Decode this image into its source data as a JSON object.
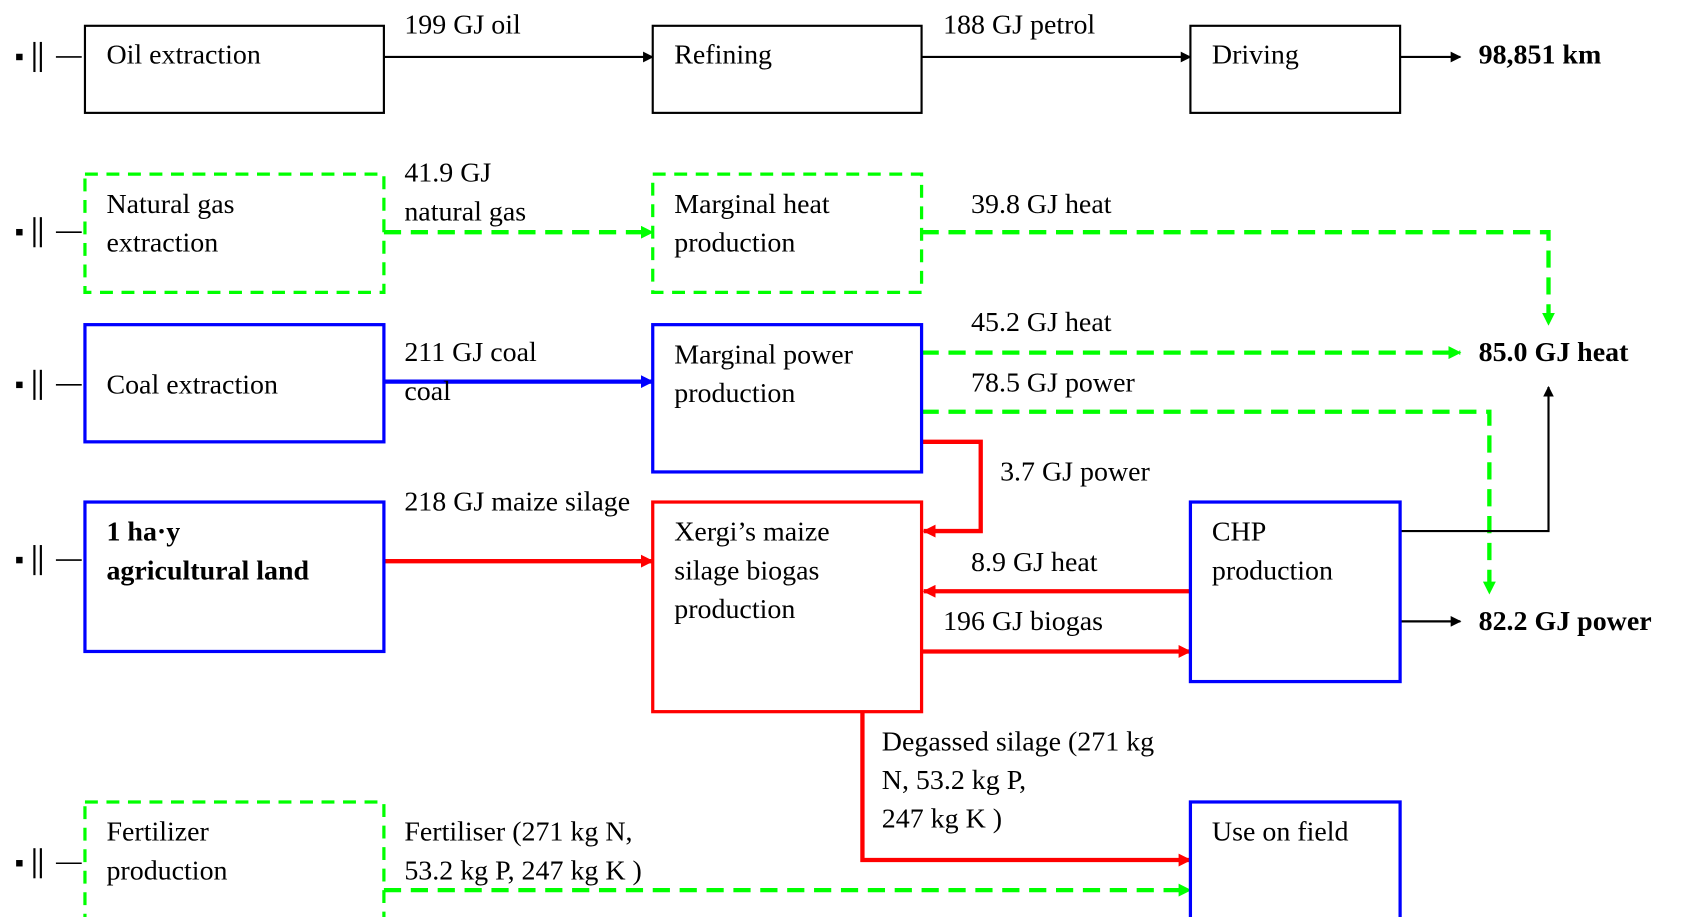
{
  "nodes": [
    {
      "lines": [
        "Oil extraction"
      ]
    },
    {
      "lines": [
        "Refining"
      ]
    },
    {
      "lines": [
        "Driving"
      ]
    },
    {
      "lines": [
        "Natural gas",
        "extraction"
      ]
    },
    {
      "lines": [
        "Marginal heat",
        "production"
      ]
    },
    {
      "lines": [
        "Coal extraction"
      ]
    },
    {
      "lines": [
        "Marginal power",
        "production"
      ]
    },
    {
      "lines": [
        "1 ha·y",
        "agricultural land"
      ]
    },
    {
      "lines": [
        "Xergi’s maize",
        "silage biogas",
        "production"
      ]
    },
    {
      "lines": [
        "CHP",
        "production"
      ]
    },
    {
      "lines": [
        "Fertilizer",
        "production"
      ]
    },
    {
      "lines": [
        "Use on field"
      ]
    }
  ],
  "flows": [
    {
      "lines": [
        "199 GJ oil"
      ]
    },
    {
      "lines": [
        "188 GJ petrol"
      ]
    },
    {
      "lines": [
        "41.9 GJ",
        "natural gas"
      ]
    },
    {
      "lines": [
        "39.8 GJ heat"
      ]
    },
    {
      "lines": [
        "211 GJ coal",
        "coal"
      ]
    },
    {
      "lines": [
        "45.2 GJ heat"
      ]
    },
    {
      "lines": [
        "78.5 GJ power"
      ]
    },
    {
      "lines": [
        "3.7 GJ power"
      ]
    },
    {
      "lines": [
        "218 GJ maize silage"
      ]
    },
    {
      "lines": [
        "8.9 GJ heat"
      ]
    },
    {
      "lines": [
        "196 GJ biogas"
      ]
    },
    {
      "lines": [
        "Degassed silage (271 kg",
        "N, 53.2 kg P,",
        "247 kg K )"
      ]
    },
    {
      "lines": [
        "Fertiliser (271 kg N,",
        "53.2 kg P, 247 kg K )"
      ]
    }
  ],
  "outputs": [
    "98,851 km",
    "85.0 GJ heat",
    "82.2 GJ power"
  ]
}
